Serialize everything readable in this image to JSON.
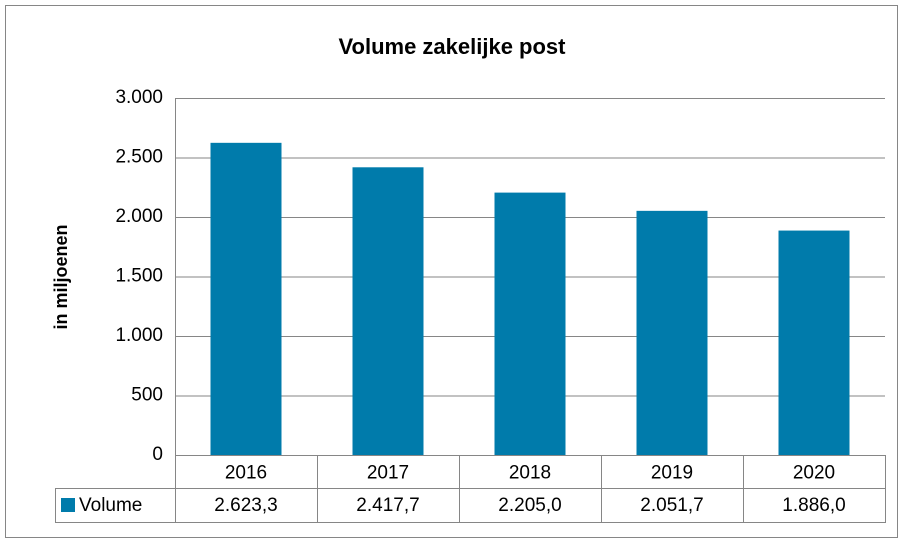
{
  "chart_data": {
    "type": "bar",
    "title": "Volume zakelijke post",
    "y_label": "in miljoenen",
    "categories": [
      "2016",
      "2017",
      "2018",
      "2019",
      "2020"
    ],
    "series": [
      {
        "name": "Volume",
        "color": "#007bab",
        "values": [
          2623.3,
          2417.7,
          2205.0,
          2051.7,
          1886.0
        ],
        "value_labels": [
          "2.623,3",
          "2.417,7",
          "2.205,0",
          "2.051,7",
          "1.886,0"
        ]
      }
    ],
    "ylim": [
      0,
      3000
    ],
    "yticks": [
      0,
      500,
      {
        "value": 1000,
        "label": "1.000"
      },
      {
        "value": 1500,
        "label": "1.500"
      },
      {
        "value": 2000,
        "label": "2.000"
      },
      {
        "value": 2500,
        "label": "2.500"
      },
      {
        "value": 3000,
        "label": "3.000"
      }
    ],
    "grid": true,
    "data_table": true
  }
}
